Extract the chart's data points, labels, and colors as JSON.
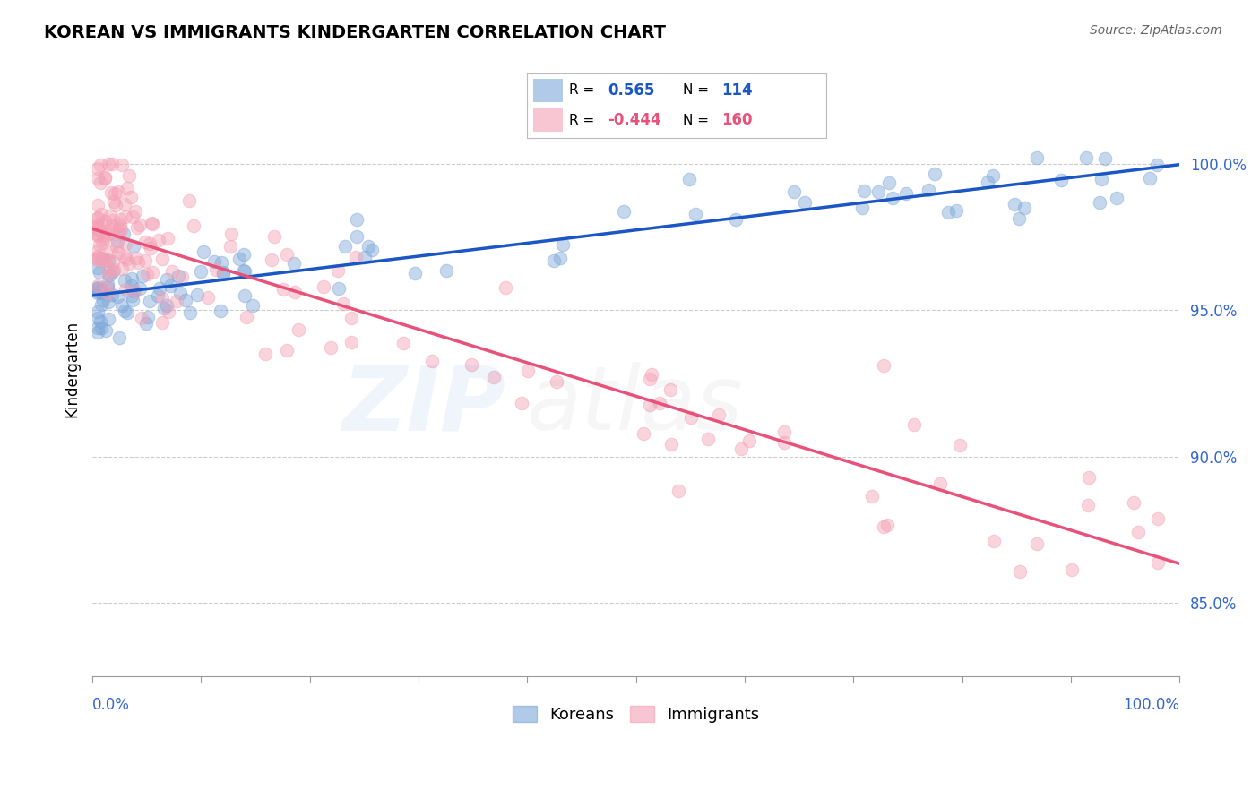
{
  "title": "KOREAN VS IMMIGRANTS KINDERGARTEN CORRELATION CHART",
  "source": "Source: ZipAtlas.com",
  "ylabel": "Kindergarten",
  "legend_r_values": [
    "0.565",
    "-0.444"
  ],
  "legend_n_values": [
    "114",
    "160"
  ],
  "ytick_labels": [
    "85.0%",
    "90.0%",
    "95.0%",
    "100.0%"
  ],
  "ytick_values": [
    0.85,
    0.9,
    0.95,
    1.0
  ],
  "xlim": [
    0.0,
    1.0
  ],
  "ylim": [
    0.825,
    1.035
  ],
  "korean_color": "#7da7d9",
  "immigrant_color": "#f4a0b5",
  "korean_line_color": "#1a56c4",
  "immigrant_line_color": "#e8527a",
  "korean_r": 0.565,
  "immigrant_r": -0.444,
  "korean_n": 114,
  "immigrant_n": 160
}
